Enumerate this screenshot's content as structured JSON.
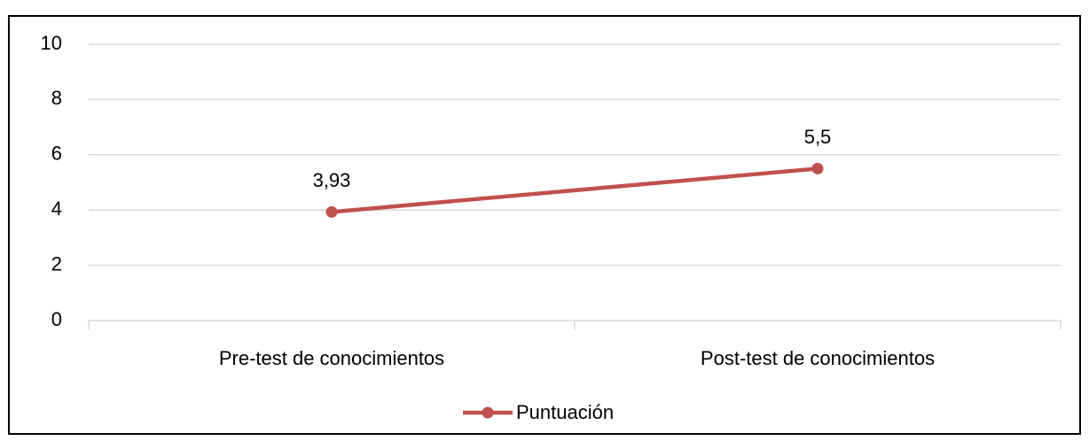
{
  "chart_data": {
    "type": "line",
    "categories": [
      "Pre-test de conocimientos",
      "Post-test de conocimientos"
    ],
    "series": [
      {
        "name": "Puntuación",
        "color": "#c0504d",
        "values": [
          3.93,
          5.5
        ],
        "value_labels": [
          "3,93",
          "5,5"
        ]
      }
    ],
    "ylim": [
      0,
      10
    ],
    "yticks": [
      0,
      2,
      4,
      6,
      8,
      10
    ],
    "grid": true,
    "legend": "bottom"
  }
}
